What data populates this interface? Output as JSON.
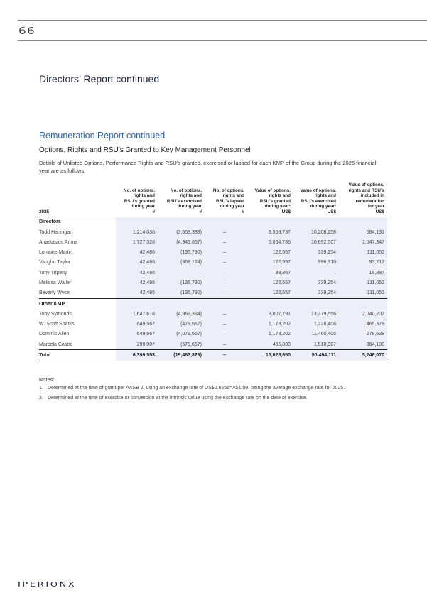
{
  "page_number": "66",
  "section_title": "Directors’ Report continued",
  "report_title": "Remuneration Report continued",
  "subheading": "Options, Rights and RSU’s Granted to Key Management Personnel",
  "intro": "Details of Unlisted Options, Performance Rights and RSU’s granted, exercised or lapsed for each KMP of the Group during the 2025 financial year are as follows:",
  "table": {
    "year_label": "2025",
    "headers": [
      {
        "lines": [
          "No. of options,",
          "rights and",
          "RSU’s granted",
          "during year",
          "#"
        ]
      },
      {
        "lines": [
          "No. of options,",
          "rights and",
          "RSU’s exercised",
          "during year",
          "#"
        ]
      },
      {
        "lines": [
          "No. of options,",
          "rights and",
          "RSU’s lapsed",
          "during year",
          "#"
        ]
      },
      {
        "lines": [
          "Value of options,",
          "rights and",
          "RSU’s granted",
          "during year¹",
          "US$"
        ]
      },
      {
        "lines": [
          "Value of options,",
          "rights and",
          "RSU’s exercised",
          "during year²",
          "US$"
        ]
      },
      {
        "lines": [
          "Value of options,",
          "rights and RSU’s",
          "included in",
          "remuneration",
          "for year",
          "US$"
        ]
      }
    ],
    "sections": [
      {
        "title": "Directors",
        "rows": [
          [
            "Todd Hannigan",
            "1,214,036",
            "(3,659,333)",
            "–",
            "3,559,737",
            "10,208,258",
            "584,131"
          ],
          [
            "Anastasios Arima",
            "1,727,328",
            "(4,943,667)",
            "–",
            "5,064,786",
            "10,692,507",
            "1,047,347"
          ],
          [
            "Lorraine Martin",
            "42,486",
            "(135,790)",
            "–",
            "122,557",
            "339,254",
            "111,052"
          ],
          [
            "Vaughn Taylor",
            "42,486",
            "(369,124)",
            "–",
            "122,557",
            "996,310",
            "93,217"
          ],
          [
            "Tony Tripeny",
            "42,486",
            "–",
            "–",
            "93,867",
            "–",
            "19,887"
          ],
          [
            "Melissa Waller",
            "42,486",
            "(135,790)",
            "–",
            "122,557",
            "339,254",
            "111,052"
          ],
          [
            "Beverly Wyse",
            "42,486",
            "(135,790)",
            "–",
            "122,557",
            "339,254",
            "111,052"
          ]
        ]
      },
      {
        "title": "Other KMP",
        "rows": [
          [
            "Toby Symonds",
            "1,647,618",
            "(4,969,334)",
            "–",
            "3,007,791",
            "13,379,556",
            "2,040,207"
          ],
          [
            "W. Scott Sparks",
            "649,567",
            "(479,667)",
            "–",
            "1,178,202",
            "1,228,406",
            "465,379"
          ],
          [
            "Dominic Allen",
            "649,567",
            "(4,079,667)",
            "–",
            "1,178,202",
            "11,460,405",
            "278,638"
          ],
          [
            "Marcela Castro",
            "299,007",
            "(579,667)",
            "–",
            "455,838",
            "1,510,907",
            "384,108"
          ]
        ]
      }
    ],
    "total": [
      "Total",
      "6,399,553",
      "(19,487,829)",
      "–",
      "15,028,650",
      "50,494,111",
      "5,246,070"
    ]
  },
  "notes": {
    "title": "Notes:",
    "items": [
      {
        "num": "1.",
        "text": "Determined at the time of grant per AASB 2, using an exchange rate of US$0.6556=A$1.00, being the average exchange rate for 2025."
      },
      {
        "num": "2.",
        "text": "Determined at the time of exercise or conversion at the intrinsic value using the exchange rate on the date of exercise."
      }
    ]
  },
  "logo_text": "IPERIONX"
}
